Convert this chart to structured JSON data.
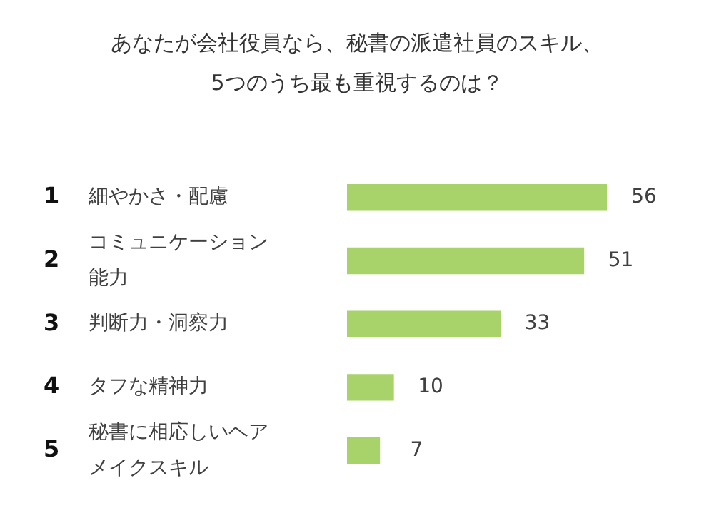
{
  "chart_data": {
    "type": "bar",
    "orientation": "horizontal",
    "title": "あなたが会社役員なら、秘書の派遣社員のスキル、\n5つのうち最も重視するのは？",
    "categories": [
      "細やかさ・配慮",
      "コミュニケーション能力",
      "判断力・洞察力",
      "タフな精神力",
      "秘書に相応しいヘアメイクスキル"
    ],
    "values": [
      56,
      51,
      33,
      10,
      7
    ],
    "color": "#a8d36a",
    "data_labels": true,
    "legend": false,
    "annotations": [
      "1",
      "2",
      "3",
      "4",
      "5"
    ]
  }
}
